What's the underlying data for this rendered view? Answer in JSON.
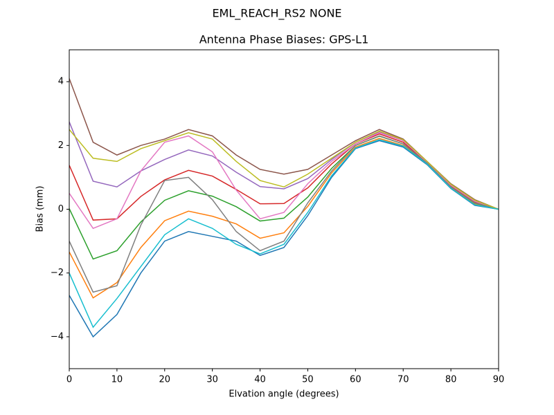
{
  "chart_data": {
    "type": "line",
    "suptitle": "EML_REACH_RS2   NONE",
    "title": "Antenna Phase Biases: GPS-L1",
    "xlabel": "Elvation angle (degrees)",
    "ylabel": "Bias (mm)",
    "x": [
      0,
      5,
      10,
      15,
      20,
      25,
      30,
      35,
      40,
      45,
      50,
      55,
      60,
      65,
      70,
      75,
      80,
      85,
      90
    ],
    "xlim": [
      0,
      90
    ],
    "xticks": [
      0,
      10,
      20,
      30,
      40,
      50,
      60,
      70,
      80,
      90
    ],
    "ylim": [
      -5,
      5
    ],
    "yticks": [
      {
        "value": -4,
        "label": "−4"
      },
      {
        "value": -2,
        "label": "−2"
      },
      0,
      2,
      4
    ],
    "grid": false,
    "series": [
      {
        "color": "#1f77b4",
        "values": [
          -2.7,
          -4.0,
          -3.3,
          -2.0,
          -1.0,
          -0.7,
          -0.85,
          -1.0,
          -1.45,
          -1.2,
          -0.2,
          1.0,
          1.9,
          2.15,
          1.95,
          1.4,
          0.65,
          0.12,
          0
        ]
      },
      {
        "color": "#ff7f0e",
        "values": [
          -1.34,
          -2.78,
          -2.3,
          -1.2,
          -0.36,
          -0.06,
          -0.22,
          -0.46,
          -0.91,
          -0.74,
          0.09,
          1.14,
          1.95,
          2.22,
          2.0,
          1.42,
          0.68,
          0.16,
          0
        ]
      },
      {
        "color": "#2ca02c",
        "values": [
          0.02,
          -1.56,
          -1.3,
          -0.4,
          0.28,
          0.58,
          0.41,
          0.08,
          -0.37,
          -0.28,
          0.38,
          1.28,
          2.0,
          2.29,
          2.05,
          1.44,
          0.71,
          0.19,
          0
        ]
      },
      {
        "color": "#d62728",
        "values": [
          1.38,
          -0.34,
          -0.3,
          0.4,
          0.92,
          1.22,
          1.04,
          0.62,
          0.17,
          0.18,
          0.67,
          1.42,
          2.05,
          2.36,
          2.1,
          1.46,
          0.74,
          0.23,
          0
        ]
      },
      {
        "color": "#9467bd",
        "values": [
          2.74,
          0.88,
          0.7,
          1.2,
          1.56,
          1.86,
          1.67,
          1.16,
          0.71,
          0.64,
          0.96,
          1.56,
          2.1,
          2.43,
          2.15,
          1.48,
          0.77,
          0.26,
          0
        ]
      },
      {
        "color": "#8c564b",
        "values": [
          4.1,
          2.1,
          1.7,
          2.0,
          2.2,
          2.5,
          2.3,
          1.7,
          1.25,
          1.1,
          1.25,
          1.7,
          2.15,
          2.5,
          2.2,
          1.5,
          0.8,
          0.3,
          0
        ]
      },
      {
        "color": "#e377c2",
        "values": [
          0.5,
          -0.6,
          -0.3,
          1.2,
          2.1,
          2.3,
          1.8,
          0.6,
          -0.3,
          -0.1,
          0.8,
          1.5,
          2.05,
          2.4,
          2.15,
          1.48,
          0.75,
          0.25,
          0
        ]
      },
      {
        "color": "#7f7f7f",
        "values": [
          -1.0,
          -2.6,
          -2.4,
          -0.5,
          0.9,
          1.0,
          0.3,
          -0.7,
          -1.3,
          -1.0,
          0.2,
          1.2,
          2.0,
          2.3,
          2.05,
          1.45,
          0.7,
          0.2,
          0
        ]
      },
      {
        "color": "#bcbd22",
        "values": [
          2.5,
          1.6,
          1.5,
          1.9,
          2.15,
          2.4,
          2.2,
          1.5,
          0.9,
          0.7,
          1.1,
          1.6,
          2.1,
          2.45,
          2.18,
          1.5,
          0.78,
          0.28,
          0
        ]
      },
      {
        "color": "#17becf",
        "values": [
          -2.0,
          -3.7,
          -2.8,
          -1.8,
          -0.8,
          -0.3,
          -0.6,
          -1.1,
          -1.4,
          -1.1,
          -0.1,
          1.05,
          1.92,
          2.18,
          1.98,
          1.42,
          0.66,
          0.14,
          0
        ]
      }
    ]
  }
}
